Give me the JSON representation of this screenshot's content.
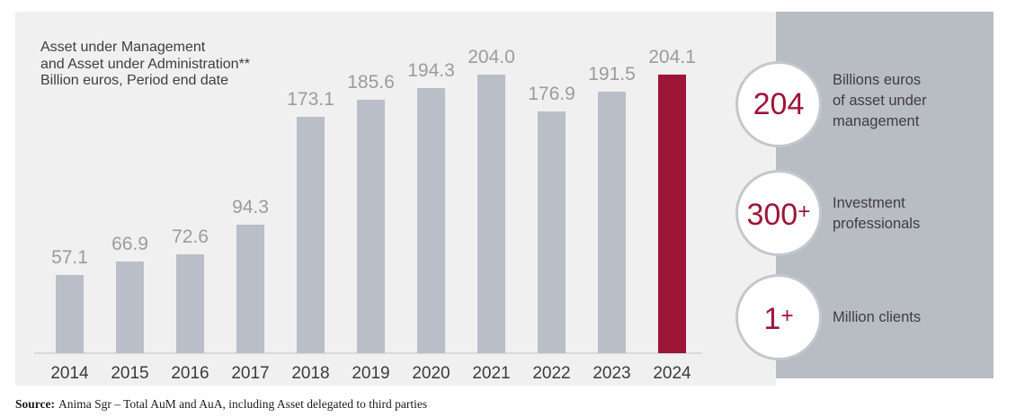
{
  "chart_data": {
    "type": "bar",
    "title_lines": [
      "Asset under Management",
      "and Asset under Administration**",
      "Billion euros, Period end date"
    ],
    "categories": [
      "2014",
      "2015",
      "2016",
      "2017",
      "2018",
      "2019",
      "2020",
      "2021",
      "2022",
      "2023",
      "2024"
    ],
    "values": [
      57.1,
      66.9,
      72.6,
      94.3,
      173.1,
      185.6,
      194.3,
      204.0,
      176.9,
      191.5,
      204.1
    ],
    "value_labels": [
      "57.1",
      "66.9",
      "72.6",
      "94.3",
      "173.1",
      "185.6",
      "194.3",
      "204.0",
      "176.9",
      "191.5",
      "204.1"
    ],
    "highlight_index": 10,
    "xlabel": "",
    "ylabel": "Billion euros",
    "ylim": [
      0,
      215
    ],
    "grid": false,
    "legend": "none",
    "bar_color": "#b9bec8",
    "highlight_color": "#9d1537"
  },
  "stats": [
    {
      "value": "204",
      "label_lines": [
        "Billions euros",
        "of asset under",
        "management"
      ]
    },
    {
      "value": "300+",
      "label_lines": [
        "Investment",
        "professionals"
      ]
    },
    {
      "value": "1+",
      "label_lines": [
        "Million clients"
      ]
    }
  ],
  "source": {
    "prefix": "Source:",
    "text": "Anima Sgr – Total AuM and AuA, including Asset delegated to third parties"
  },
  "colors": {
    "chart_panel_bg": "#f0f0f0",
    "stats_panel_bg": "#b8bcc3",
    "bar": "#b9bec8",
    "highlight": "#9d1537",
    "value_label": "#9b9ba0",
    "year_label": "#3b3b3a",
    "title_text": "#3e3e3d",
    "axis_line": "#d9d9d9",
    "stat_value": "#9d1537",
    "circle_border": "#c3c7ce"
  }
}
